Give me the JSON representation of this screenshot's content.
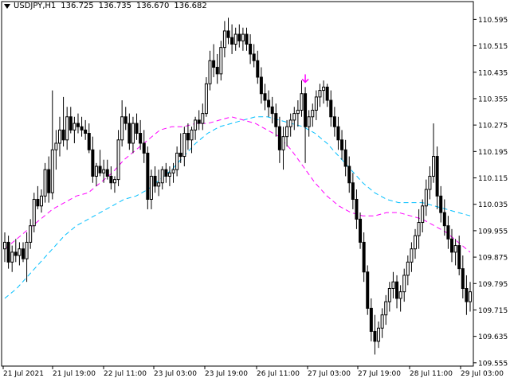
{
  "header": {
    "symbol": "USDJPY,H1",
    "open": "136.725",
    "high": "136.735",
    "low": "136.670",
    "close": "136.682"
  },
  "colors": {
    "background": "#ffffff",
    "candle": "#000000",
    "ma_fast": "#ff00ff",
    "ma_slow": "#00bfff",
    "signal_arrow": "#ff00ff"
  },
  "icons": [
    "dropdown-triangle-icon",
    "sell-arrow-icon"
  ],
  "chart_data": {
    "type": "candlestick",
    "y_ticks": [
      "110.595",
      "110.515",
      "110.435",
      "110.355",
      "110.275",
      "110.195",
      "110.115",
      "110.035",
      "109.955",
      "109.875",
      "109.795",
      "109.715",
      "109.635",
      "109.555"
    ],
    "x_ticks": [
      "21 Jul 2021",
      "21 Jul 19:00",
      "22 Jul 11:00",
      "23 Jul 03:00",
      "23 Jul 19:00",
      "26 Jul 11:00",
      "27 Jul 03:00",
      "27 Jul 19:00",
      "28 Jul 11:00",
      "29 Jul 03:00"
    ],
    "ylim": [
      109.555,
      110.63
    ],
    "ohlc": [
      [
        109.9,
        109.95,
        109.86,
        109.92
      ],
      [
        109.92,
        109.94,
        109.84,
        109.86
      ],
      [
        109.86,
        109.91,
        109.83,
        109.89
      ],
      [
        109.89,
        109.93,
        109.86,
        109.88
      ],
      [
        109.88,
        109.92,
        109.85,
        109.9
      ],
      [
        109.9,
        109.92,
        109.86,
        109.87
      ],
      [
        109.87,
        109.95,
        109.8,
        109.92
      ],
      [
        109.92,
        109.99,
        109.9,
        109.97
      ],
      [
        109.97,
        110.07,
        109.95,
        110.05
      ],
      [
        110.05,
        110.09,
        110.02,
        110.03
      ],
      [
        110.03,
        110.08,
        110.01,
        110.06
      ],
      [
        110.06,
        110.16,
        110.04,
        110.14
      ],
      [
        110.14,
        110.18,
        110.04,
        110.07
      ],
      [
        110.07,
        110.38,
        110.05,
        110.2
      ],
      [
        110.2,
        110.26,
        110.14,
        110.22
      ],
      [
        110.22,
        110.3,
        110.18,
        110.26
      ],
      [
        110.26,
        110.36,
        110.21,
        110.23
      ],
      [
        110.23,
        110.33,
        110.2,
        110.3
      ],
      [
        110.3,
        110.33,
        110.25,
        110.26
      ],
      [
        110.26,
        110.3,
        110.22,
        110.28
      ],
      [
        110.28,
        110.31,
        110.25,
        110.27
      ],
      [
        110.27,
        110.3,
        110.24,
        110.26
      ],
      [
        110.26,
        110.29,
        110.23,
        110.25
      ],
      [
        110.25,
        110.28,
        110.19,
        110.2
      ],
      [
        110.2,
        110.24,
        110.1,
        110.12
      ],
      [
        110.12,
        110.16,
        110.09,
        110.15
      ],
      [
        110.15,
        110.2,
        110.12,
        110.13
      ],
      [
        110.13,
        110.17,
        110.1,
        110.14
      ],
      [
        110.14,
        110.17,
        110.11,
        110.12
      ],
      [
        110.12,
        110.15,
        110.08,
        110.1
      ],
      [
        110.1,
        110.12,
        110.07,
        110.11
      ],
      [
        110.11,
        110.26,
        110.09,
        110.23
      ],
      [
        110.23,
        110.35,
        110.21,
        110.3
      ],
      [
        110.3,
        110.33,
        110.26,
        110.28
      ],
      [
        110.28,
        110.31,
        110.2,
        110.22
      ],
      [
        110.22,
        110.3,
        110.19,
        110.28
      ],
      [
        110.28,
        110.31,
        110.23,
        110.25
      ],
      [
        110.25,
        110.29,
        110.2,
        110.22
      ],
      [
        110.22,
        110.26,
        110.16,
        110.19
      ],
      [
        110.19,
        110.21,
        110.02,
        110.05
      ],
      [
        110.05,
        110.14,
        110.02,
        110.12
      ],
      [
        110.12,
        110.15,
        110.07,
        110.09
      ],
      [
        110.09,
        110.14,
        110.06,
        110.1
      ],
      [
        110.1,
        110.15,
        110.08,
        110.14
      ],
      [
        110.14,
        110.16,
        110.1,
        110.12
      ],
      [
        110.12,
        110.15,
        110.09,
        110.13
      ],
      [
        110.13,
        110.16,
        110.1,
        110.14
      ],
      [
        110.14,
        110.21,
        110.12,
        110.19
      ],
      [
        110.19,
        110.25,
        110.16,
        110.18
      ],
      [
        110.18,
        110.27,
        110.15,
        110.25
      ],
      [
        110.25,
        110.28,
        110.2,
        110.23
      ],
      [
        110.23,
        110.27,
        110.19,
        110.26
      ],
      [
        110.26,
        110.3,
        110.23,
        110.29
      ],
      [
        110.29,
        110.32,
        110.26,
        110.28
      ],
      [
        110.28,
        110.34,
        110.26,
        110.31
      ],
      [
        110.31,
        110.42,
        110.3,
        110.4
      ],
      [
        110.4,
        110.5,
        110.38,
        110.47
      ],
      [
        110.47,
        110.52,
        110.42,
        110.45
      ],
      [
        110.45,
        110.49,
        110.4,
        110.43
      ],
      [
        110.43,
        110.53,
        110.41,
        110.51
      ],
      [
        110.51,
        110.59,
        110.48,
        110.56
      ],
      [
        110.56,
        110.6,
        110.52,
        110.54
      ],
      [
        110.54,
        110.58,
        110.49,
        110.52
      ],
      [
        110.52,
        110.57,
        110.5,
        110.55
      ],
      [
        110.55,
        110.58,
        110.51,
        110.53
      ],
      [
        110.53,
        110.57,
        110.5,
        110.55
      ],
      [
        110.55,
        110.57,
        110.5,
        110.52
      ],
      [
        110.52,
        110.55,
        110.46,
        110.49
      ],
      [
        110.49,
        110.52,
        110.45,
        110.47
      ],
      [
        110.47,
        110.5,
        110.4,
        110.42
      ],
      [
        110.42,
        110.45,
        110.34,
        110.37
      ],
      [
        110.37,
        110.4,
        110.32,
        110.35
      ],
      [
        110.35,
        110.38,
        110.3,
        110.33
      ],
      [
        110.33,
        110.36,
        110.28,
        110.31
      ],
      [
        110.31,
        110.34,
        110.24,
        110.27
      ],
      [
        110.27,
        110.3,
        110.16,
        110.2
      ],
      [
        110.2,
        110.27,
        110.14,
        110.24
      ],
      [
        110.24,
        110.29,
        110.21,
        110.27
      ],
      [
        110.27,
        110.31,
        110.24,
        110.29
      ],
      [
        110.29,
        110.33,
        110.26,
        110.31
      ],
      [
        110.31,
        110.35,
        110.27,
        110.32
      ],
      [
        110.32,
        110.41,
        110.3,
        110.37
      ],
      [
        110.37,
        110.39,
        110.16,
        110.27
      ],
      [
        110.27,
        110.32,
        110.24,
        110.3
      ],
      [
        110.3,
        110.34,
        110.27,
        110.32
      ],
      [
        110.32,
        110.38,
        110.29,
        110.36
      ],
      [
        110.36,
        110.4,
        110.33,
        110.38
      ],
      [
        110.38,
        110.41,
        110.34,
        110.39
      ],
      [
        110.39,
        110.4,
        110.33,
        110.35
      ],
      [
        110.35,
        110.38,
        110.27,
        110.3
      ],
      [
        110.3,
        110.33,
        110.24,
        110.27
      ],
      [
        110.27,
        110.3,
        110.2,
        110.23
      ],
      [
        110.23,
        110.26,
        110.17,
        110.2
      ],
      [
        110.2,
        110.23,
        110.12,
        110.15
      ],
      [
        110.15,
        110.18,
        110.07,
        110.1
      ],
      [
        110.1,
        110.13,
        110.02,
        110.05
      ],
      [
        110.05,
        110.08,
        109.96,
        109.99
      ],
      [
        109.99,
        110.01,
        109.9,
        109.92
      ],
      [
        109.92,
        109.95,
        109.8,
        109.83
      ],
      [
        109.83,
        109.85,
        109.7,
        109.72
      ],
      [
        109.72,
        109.75,
        109.62,
        109.65
      ],
      [
        109.65,
        109.7,
        109.58,
        109.62
      ],
      [
        109.62,
        109.68,
        109.6,
        109.66
      ],
      [
        109.66,
        109.72,
        109.63,
        109.7
      ],
      [
        109.7,
        109.76,
        109.67,
        109.74
      ],
      [
        109.74,
        109.8,
        109.71,
        109.78
      ],
      [
        109.78,
        109.83,
        109.75,
        109.8
      ],
      [
        109.8,
        109.82,
        109.72,
        109.75
      ],
      [
        109.75,
        109.79,
        109.71,
        109.77
      ],
      [
        109.77,
        109.84,
        109.74,
        109.82
      ],
      [
        109.82,
        109.88,
        109.79,
        109.86
      ],
      [
        109.86,
        109.92,
        109.83,
        109.9
      ],
      [
        109.9,
        109.96,
        109.87,
        109.94
      ],
      [
        109.94,
        110.02,
        109.9,
        109.98
      ],
      [
        109.98,
        110.05,
        109.95,
        110.03
      ],
      [
        110.03,
        110.11,
        110.0,
        110.08
      ],
      [
        110.08,
        110.15,
        110.05,
        110.12
      ],
      [
        110.12,
        110.28,
        110.1,
        110.18
      ],
      [
        110.18,
        110.21,
        110.02,
        110.06
      ],
      [
        110.06,
        110.09,
        109.98,
        110.01
      ],
      [
        110.01,
        110.05,
        109.94,
        109.97
      ],
      [
        109.97,
        110.0,
        109.9,
        109.93
      ],
      [
        109.93,
        109.96,
        109.86,
        109.89
      ],
      [
        109.89,
        109.93,
        109.85,
        109.91
      ],
      [
        109.91,
        109.94,
        109.82,
        109.84
      ],
      [
        109.84,
        109.88,
        109.75,
        109.78
      ],
      [
        109.78,
        109.82,
        109.7,
        109.74
      ],
      [
        109.74,
        109.8,
        109.71,
        109.77
      ]
    ],
    "ma_fast": [
      109.9,
      109.93,
      109.96,
      109.99,
      110.02,
      110.04,
      110.06,
      110.07,
      110.1,
      110.13,
      110.17,
      110.2,
      110.23,
      110.26,
      110.27,
      110.27,
      110.28,
      110.28,
      110.29,
      110.3,
      110.29,
      110.28,
      110.26,
      110.24,
      110.2,
      110.15,
      110.1,
      110.06,
      110.03,
      110.01,
      110.0,
      110.0,
      110.01,
      110.01,
      110.0,
      109.99,
      109.97,
      109.95,
      109.92,
      109.89
    ],
    "ma_slow": [
      109.75,
      109.78,
      109.82,
      109.86,
      109.9,
      109.94,
      109.97,
      109.99,
      110.01,
      110.03,
      110.05,
      110.06,
      110.08,
      110.11,
      110.14,
      110.18,
      110.22,
      110.25,
      110.27,
      110.28,
      110.29,
      110.3,
      110.3,
      110.29,
      110.28,
      110.27,
      110.25,
      110.22,
      110.18,
      110.14,
      110.1,
      110.07,
      110.05,
      110.04,
      110.04,
      110.04,
      110.03,
      110.02,
      110.01,
      110.0
    ],
    "signal": {
      "type": "sell",
      "bar_index": 82
    }
  }
}
